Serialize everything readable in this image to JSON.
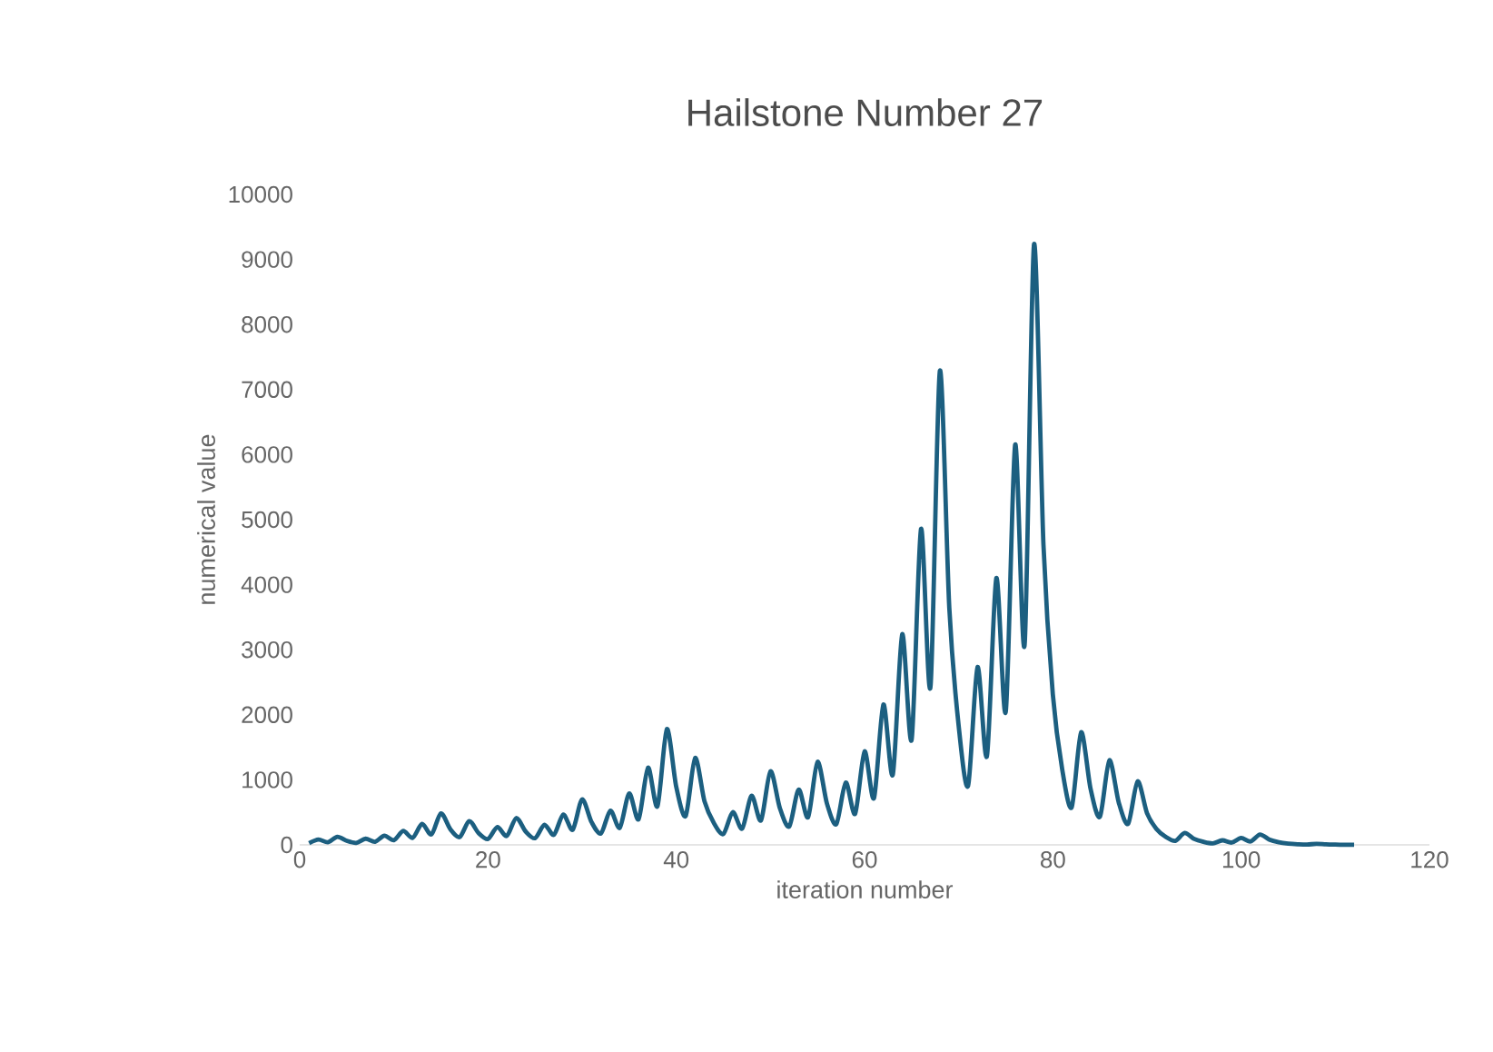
{
  "chart_data": {
    "type": "line",
    "title": "Hailstone Number 27",
    "xlabel": "iteration number",
    "ylabel": "numerical value",
    "x": [
      1,
      2,
      3,
      4,
      5,
      6,
      7,
      8,
      9,
      10,
      11,
      12,
      13,
      14,
      15,
      16,
      17,
      18,
      19,
      20,
      21,
      22,
      23,
      24,
      25,
      26,
      27,
      28,
      29,
      30,
      31,
      32,
      33,
      34,
      35,
      36,
      37,
      38,
      39,
      40,
      41,
      42,
      43,
      44,
      45,
      46,
      47,
      48,
      49,
      50,
      51,
      52,
      53,
      54,
      55,
      56,
      57,
      58,
      59,
      60,
      61,
      62,
      63,
      64,
      65,
      66,
      67,
      68,
      69,
      70,
      71,
      72,
      73,
      74,
      75,
      76,
      77,
      78,
      79,
      80,
      81,
      82,
      83,
      84,
      85,
      86,
      87,
      88,
      89,
      90,
      91,
      92,
      93,
      94,
      95,
      96,
      97,
      98,
      99,
      100,
      101,
      102,
      103,
      104,
      105,
      106,
      107,
      108,
      109,
      110,
      111,
      112
    ],
    "series": [
      {
        "color": "#1c5f80",
        "values": [
          27,
          82,
          41,
          124,
          62,
          31,
          94,
          47,
          142,
          71,
          214,
          107,
          322,
          161,
          484,
          242,
          121,
          364,
          182,
          91,
          274,
          137,
          412,
          206,
          103,
          310,
          155,
          466,
          233,
          700,
          350,
          175,
          526,
          263,
          790,
          395,
          1186,
          593,
          1780,
          890,
          445,
          1336,
          668,
          334,
          167,
          502,
          251,
          754,
          377,
          1132,
          566,
          283,
          850,
          425,
          1276,
          638,
          319,
          958,
          479,
          1438,
          719,
          2158,
          1079,
          3238,
          1619,
          4858,
          2429,
          7288,
          3644,
          1822,
          911,
          2734,
          1367,
          4102,
          2051,
          6154,
          3077,
          9232,
          4616,
          2308,
          1154,
          577,
          1732,
          866,
          433,
          1300,
          650,
          325,
          976,
          488,
          244,
          122,
          61,
          184,
          92,
          46,
          23,
          70,
          35,
          106,
          53,
          160,
          80,
          40,
          20,
          10,
          5,
          16,
          8,
          4,
          2,
          1
        ]
      }
    ],
    "xlim": [
      0,
      120
    ],
    "xticks": [
      0,
      20,
      40,
      60,
      80,
      100,
      120
    ],
    "ylim": [
      0,
      10000
    ],
    "yticks": [
      0,
      1000,
      2000,
      3000,
      4000,
      5000,
      6000,
      7000,
      8000,
      9000,
      10000
    ],
    "grid": false,
    "marker": "none",
    "line_style": "solid"
  }
}
